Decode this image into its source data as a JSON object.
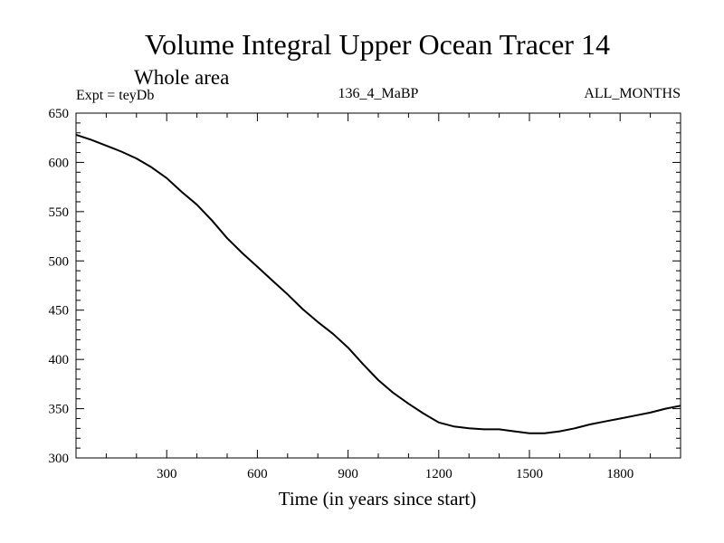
{
  "chart_data": {
    "type": "line",
    "title": "Volume Integral Upper Ocean Tracer 14",
    "subtitle": "Whole area",
    "labels": {
      "experiment": "Expt = teyDb",
      "period": "136_4_MaBP",
      "months": "ALL_MONTHS"
    },
    "xlabel": "Time (in years since start)",
    "ylabel": "",
    "xlim": [
      0,
      2000
    ],
    "ylim": [
      300,
      650
    ],
    "x_ticks": [
      300,
      600,
      900,
      1200,
      1500,
      1800
    ],
    "y_ticks": [
      300,
      350,
      400,
      450,
      500,
      550,
      600,
      650
    ],
    "grid": false,
    "series": [
      {
        "name": "Tracer 14",
        "color": "#000000",
        "x": [
          0,
          50,
          100,
          150,
          200,
          250,
          300,
          350,
          400,
          450,
          500,
          550,
          600,
          650,
          700,
          750,
          800,
          850,
          900,
          950,
          1000,
          1050,
          1100,
          1150,
          1200,
          1250,
          1300,
          1350,
          1400,
          1450,
          1500,
          1550,
          1600,
          1650,
          1700,
          1750,
          1800,
          1850,
          1900,
          1950,
          2000
        ],
        "values": [
          628,
          623,
          617,
          611,
          604,
          595,
          584,
          570,
          557,
          541,
          523,
          508,
          494,
          480,
          466,
          451,
          438,
          426,
          412,
          395,
          379,
          366,
          355,
          345,
          336,
          332,
          330,
          329,
          329,
          327,
          325,
          325,
          327,
          330,
          334,
          337,
          340,
          343,
          346,
          350,
          353
        ]
      }
    ]
  }
}
